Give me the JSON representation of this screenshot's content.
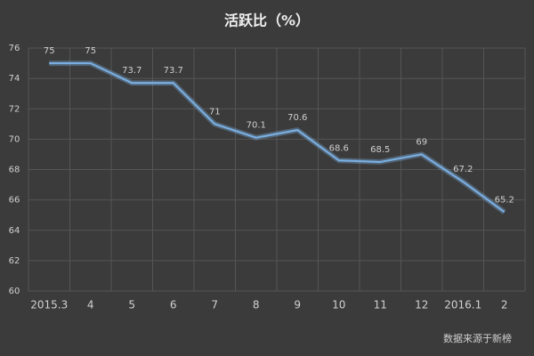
{
  "chart_data": {
    "type": "line",
    "title": "活跃比（%）",
    "categories": [
      "2015.3",
      "4",
      "5",
      "6",
      "7",
      "8",
      "9",
      "10",
      "11",
      "12",
      "2016.1",
      "2"
    ],
    "values": [
      75,
      75,
      73.7,
      73.7,
      71,
      70.1,
      70.6,
      68.6,
      68.5,
      69,
      67.2,
      65.2
    ],
    "color": "#7aaee0",
    "ylim": [
      60,
      76
    ],
    "yticks": [
      60,
      62,
      64,
      66,
      68,
      70,
      72,
      74,
      76
    ],
    "grid": true,
    "annotation": "数据来源于新榜"
  }
}
